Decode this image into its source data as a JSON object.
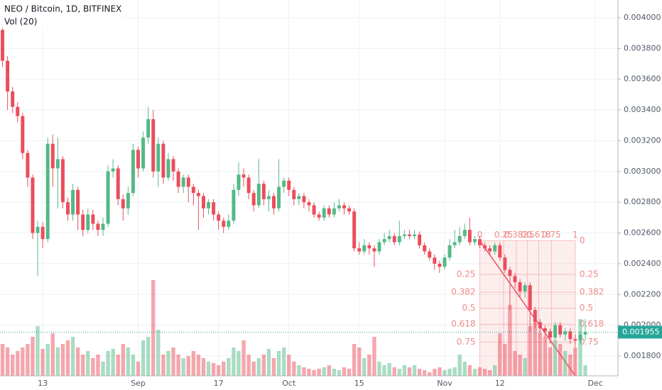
{
  "chart_data": {
    "type": "candlestick",
    "title": "NEO / Bitcoin, 1D, BITFINEX",
    "subtitle": "Vol (20)",
    "up_color": "#53b987",
    "down_color": "#eb4d5c",
    "xlim": [
      -0.5,
      122.5
    ],
    "xticks": [
      {
        "value": 8,
        "label": "13"
      },
      {
        "value": 27,
        "label": "Sep"
      },
      {
        "value": 43,
        "label": "17"
      },
      {
        "value": 57,
        "label": "Oct"
      },
      {
        "value": 71,
        "label": "15"
      },
      {
        "value": 88,
        "label": "Nov"
      },
      {
        "value": 99,
        "label": "12"
      },
      {
        "value": 118,
        "label": "Dec"
      }
    ],
    "ylim": [
      0.001671,
      0.004115
    ],
    "yticks": [
      {
        "value": 0.0018,
        "label": "0.001800"
      },
      {
        "value": 0.002,
        "label": "0.002000"
      },
      {
        "value": 0.0022,
        "label": "0.002200"
      },
      {
        "value": 0.0024,
        "label": "0.002400"
      },
      {
        "value": 0.0026,
        "label": "0.002600"
      },
      {
        "value": 0.0028,
        "label": "0.002800"
      },
      {
        "value": 0.003,
        "label": "0.003000"
      },
      {
        "value": 0.0032,
        "label": "0.003200"
      },
      {
        "value": 0.0034,
        "label": "0.003400"
      },
      {
        "value": 0.0036,
        "label": "0.003600"
      },
      {
        "value": 0.0038,
        "label": "0.003800"
      },
      {
        "value": 0.004,
        "label": "0.004000"
      }
    ],
    "grid": true,
    "open": [
      0.00392,
      0.00372,
      0.00352,
      0.00342,
      0.00336,
      0.00312,
      0.00296,
      0.0026,
      0.00264,
      0.00256,
      0.00318,
      0.00302,
      0.00308,
      0.0028,
      0.00272,
      0.00288,
      0.00272,
      0.00262,
      0.00272,
      0.00266,
      0.00262,
      0.00266,
      0.003,
      0.00302,
      0.00282,
      0.00276,
      0.00286,
      0.00314,
      0.00302,
      0.00322,
      0.00334,
      0.003,
      0.00318,
      0.00296,
      0.00308,
      0.003,
      0.0029,
      0.00296,
      0.0029,
      0.00286,
      0.00284,
      0.00276,
      0.0028,
      0.00272,
      0.00268,
      0.00264,
      0.00268,
      0.00288,
      0.00298,
      0.00296,
      0.00286,
      0.00278,
      0.00292,
      0.00282,
      0.00284,
      0.00276,
      0.0029,
      0.00294,
      0.00288,
      0.00282,
      0.00284,
      0.0028,
      0.00278,
      0.00272,
      0.0027,
      0.00276,
      0.00272,
      0.00276,
      0.00278,
      0.00276,
      0.00274,
      0.0025,
      0.00248,
      0.00252,
      0.0025,
      0.00248,
      0.00254,
      0.00256,
      0.00258,
      0.00254,
      0.00258,
      0.00259,
      0.00258,
      0.00259,
      0.00252,
      0.00248,
      0.00244,
      0.0024,
      0.00238,
      0.00244,
      0.00252,
      0.00254,
      0.00258,
      0.00262,
      0.00254,
      0.00256,
      0.00252,
      0.0025,
      0.00248,
      0.00252,
      0.00244,
      0.00236,
      0.00232,
      0.00228,
      0.00222,
      0.00226,
      0.0021,
      0.00202,
      0.00198,
      0.00196,
      0.00192,
      0.002,
      0.00194,
      0.00196,
      0.00191,
      0.0019,
      0.00194
    ],
    "high": [
      0.00395,
      0.00375,
      0.00355,
      0.00345,
      0.00338,
      0.00314,
      0.00298,
      0.00268,
      0.00267,
      0.00322,
      0.00324,
      0.00322,
      0.0031,
      0.00283,
      0.00292,
      0.0029,
      0.00275,
      0.00276,
      0.00275,
      0.00268,
      0.0027,
      0.00304,
      0.00308,
      0.00304,
      0.00285,
      0.0029,
      0.00318,
      0.00316,
      0.00326,
      0.00342,
      0.0034,
      0.00322,
      0.0032,
      0.00312,
      0.0031,
      0.00302,
      0.00298,
      0.00298,
      0.00292,
      0.00288,
      0.00286,
      0.00282,
      0.00282,
      0.00274,
      0.0027,
      0.00272,
      0.00292,
      0.00306,
      0.00302,
      0.00298,
      0.00288,
      0.00308,
      0.00294,
      0.00288,
      0.00286,
      0.00308,
      0.00296,
      0.00296,
      0.0029,
      0.00286,
      0.00286,
      0.00282,
      0.0028,
      0.00274,
      0.00278,
      0.00278,
      0.0028,
      0.00282,
      0.0028,
      0.00278,
      0.00276,
      0.00254,
      0.00256,
      0.00254,
      0.00252,
      0.00256,
      0.0026,
      0.00262,
      0.0026,
      0.00268,
      0.00262,
      0.00262,
      0.00262,
      0.00261,
      0.00254,
      0.0025,
      0.00246,
      0.00242,
      0.00246,
      0.00256,
      0.00262,
      0.00264,
      0.00266,
      0.0027,
      0.00258,
      0.00258,
      0.00254,
      0.00252,
      0.00254,
      0.00254,
      0.00246,
      0.00238,
      0.00234,
      0.0023,
      0.00228,
      0.00228,
      0.00212,
      0.00204,
      0.002,
      0.00198,
      0.00202,
      0.00202,
      0.00198,
      0.00198,
      0.00194,
      0.00196,
      0.00204
    ],
    "low": [
      0.00368,
      0.0034,
      0.00338,
      0.00332,
      0.00308,
      0.0029,
      0.00256,
      0.00232,
      0.0025,
      0.00254,
      0.0029,
      0.00276,
      0.00276,
      0.00268,
      0.00268,
      0.00262,
      0.00258,
      0.0026,
      0.00262,
      0.00258,
      0.00258,
      0.00264,
      0.00296,
      0.00278,
      0.00268,
      0.00272,
      0.00284,
      0.00296,
      0.003,
      0.00318,
      0.00296,
      0.0029,
      0.00292,
      0.00294,
      0.00294,
      0.00286,
      0.00286,
      0.0028,
      0.00278,
      0.00262,
      0.0027,
      0.00272,
      0.00268,
      0.00262,
      0.0026,
      0.00262,
      0.00266,
      0.00284,
      0.0029,
      0.00282,
      0.00274,
      0.00276,
      0.00278,
      0.00274,
      0.00272,
      0.00274,
      0.00286,
      0.00284,
      0.00278,
      0.00278,
      0.00276,
      0.00274,
      0.0027,
      0.00268,
      0.00268,
      0.0027,
      0.0027,
      0.00274,
      0.00272,
      0.00272,
      0.00248,
      0.00246,
      0.00246,
      0.00246,
      0.00238,
      0.00246,
      0.00252,
      0.00254,
      0.00252,
      0.00252,
      0.00256,
      0.00256,
      0.00256,
      0.0025,
      0.00246,
      0.00242,
      0.00236,
      0.00234,
      0.00236,
      0.00242,
      0.0025,
      0.00252,
      0.00256,
      0.00252,
      0.00252,
      0.0025,
      0.00248,
      0.00246,
      0.00246,
      0.00242,
      0.00234,
      0.0021,
      0.00224,
      0.00218,
      0.00218,
      0.00196,
      0.00198,
      0.00194,
      0.00192,
      0.00188,
      0.0019,
      0.00192,
      0.0019,
      0.00188,
      0.00186,
      0.00188,
      0.0019
    ],
    "close": [
      0.00372,
      0.00352,
      0.00342,
      0.00336,
      0.00312,
      0.00296,
      0.0026,
      0.00264,
      0.00256,
      0.00318,
      0.00302,
      0.00308,
      0.0028,
      0.00272,
      0.00288,
      0.00272,
      0.00262,
      0.00272,
      0.00266,
      0.00262,
      0.00266,
      0.003,
      0.00302,
      0.00282,
      0.00276,
      0.00286,
      0.00314,
      0.00302,
      0.00322,
      0.00334,
      0.003,
      0.00318,
      0.00296,
      0.00308,
      0.003,
      0.0029,
      0.00296,
      0.0029,
      0.00286,
      0.00284,
      0.00276,
      0.0028,
      0.00272,
      0.00268,
      0.00264,
      0.00268,
      0.00288,
      0.00298,
      0.00296,
      0.00286,
      0.00278,
      0.00292,
      0.00282,
      0.00284,
      0.00276,
      0.0029,
      0.00294,
      0.00288,
      0.00282,
      0.00284,
      0.0028,
      0.00278,
      0.00272,
      0.0027,
      0.00276,
      0.00272,
      0.00276,
      0.00278,
      0.00276,
      0.00274,
      0.0025,
      0.00248,
      0.00252,
      0.0025,
      0.00248,
      0.00254,
      0.00256,
      0.00258,
      0.00254,
      0.00258,
      0.00259,
      0.00258,
      0.00259,
      0.00252,
      0.00248,
      0.00244,
      0.0024,
      0.00238,
      0.00244,
      0.00252,
      0.00254,
      0.00258,
      0.00262,
      0.00254,
      0.00256,
      0.00252,
      0.0025,
      0.00248,
      0.00252,
      0.00244,
      0.00236,
      0.00232,
      0.00228,
      0.00222,
      0.00226,
      0.0021,
      0.00202,
      0.00198,
      0.00196,
      0.00192,
      0.002,
      0.00194,
      0.00196,
      0.00191,
      0.0019,
      0.00194,
      0.001955
    ],
    "volume": [
      45,
      40,
      30,
      35,
      40,
      45,
      55,
      70,
      38,
      45,
      60,
      40,
      45,
      50,
      55,
      40,
      30,
      35,
      25,
      30,
      20,
      35,
      38,
      30,
      45,
      40,
      30,
      20,
      50,
      55,
      135,
      65,
      30,
      35,
      40,
      30,
      25,
      28,
      35,
      30,
      25,
      20,
      18,
      15,
      20,
      25,
      40,
      35,
      50,
      30,
      20,
      25,
      30,
      38,
      25,
      35,
      40,
      30,
      20,
      15,
      12,
      10,
      8,
      10,
      12,
      15,
      10,
      8,
      12,
      10,
      45,
      40,
      25,
      30,
      55,
      20,
      15,
      18,
      12,
      10,
      15,
      12,
      15,
      10,
      8,
      5,
      10,
      12,
      8,
      10,
      12,
      30,
      20,
      15,
      10,
      12,
      10,
      8,
      15,
      60,
      45,
      100,
      35,
      30,
      25,
      70,
      75,
      60,
      55,
      40,
      50,
      45,
      35,
      30,
      40,
      80,
      15
    ],
    "fib": {
      "x_start": 95,
      "x_end": 114,
      "price_start": 0.00255,
      "price_end": 0.001671,
      "levels": [
        0,
        0.25,
        0.382,
        0.5,
        0.618,
        0.75,
        1
      ],
      "color": "#f08a8a"
    }
  }
}
